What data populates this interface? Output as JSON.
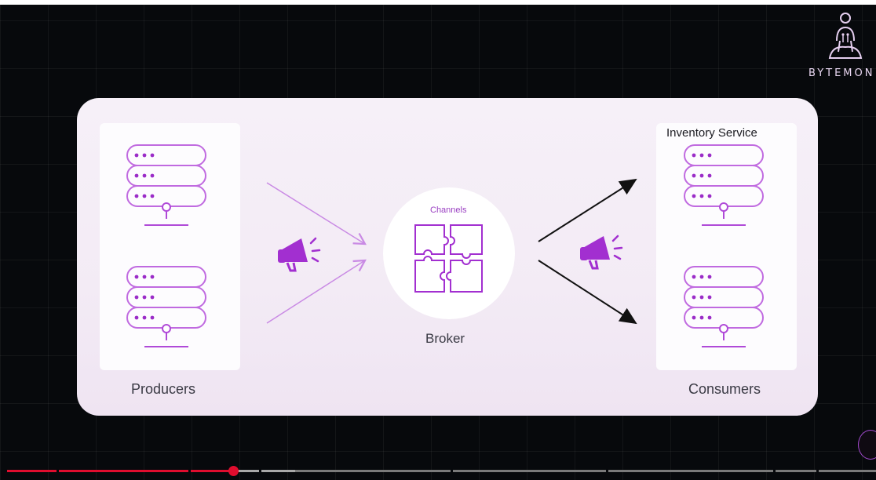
{
  "brand": {
    "name": "BYTEMON"
  },
  "diagram": {
    "producers_label": "Producers",
    "consumers_label": "Consumers",
    "broker_label": "Broker",
    "channels_label": "Channels",
    "consumer_top_title": "Inventory Service"
  },
  "player": {
    "progress": 0.26,
    "accent_color": "#e00d2e"
  },
  "colors": {
    "diagram_purple": "#a22fd0",
    "card_bg": "#f4edf6"
  }
}
